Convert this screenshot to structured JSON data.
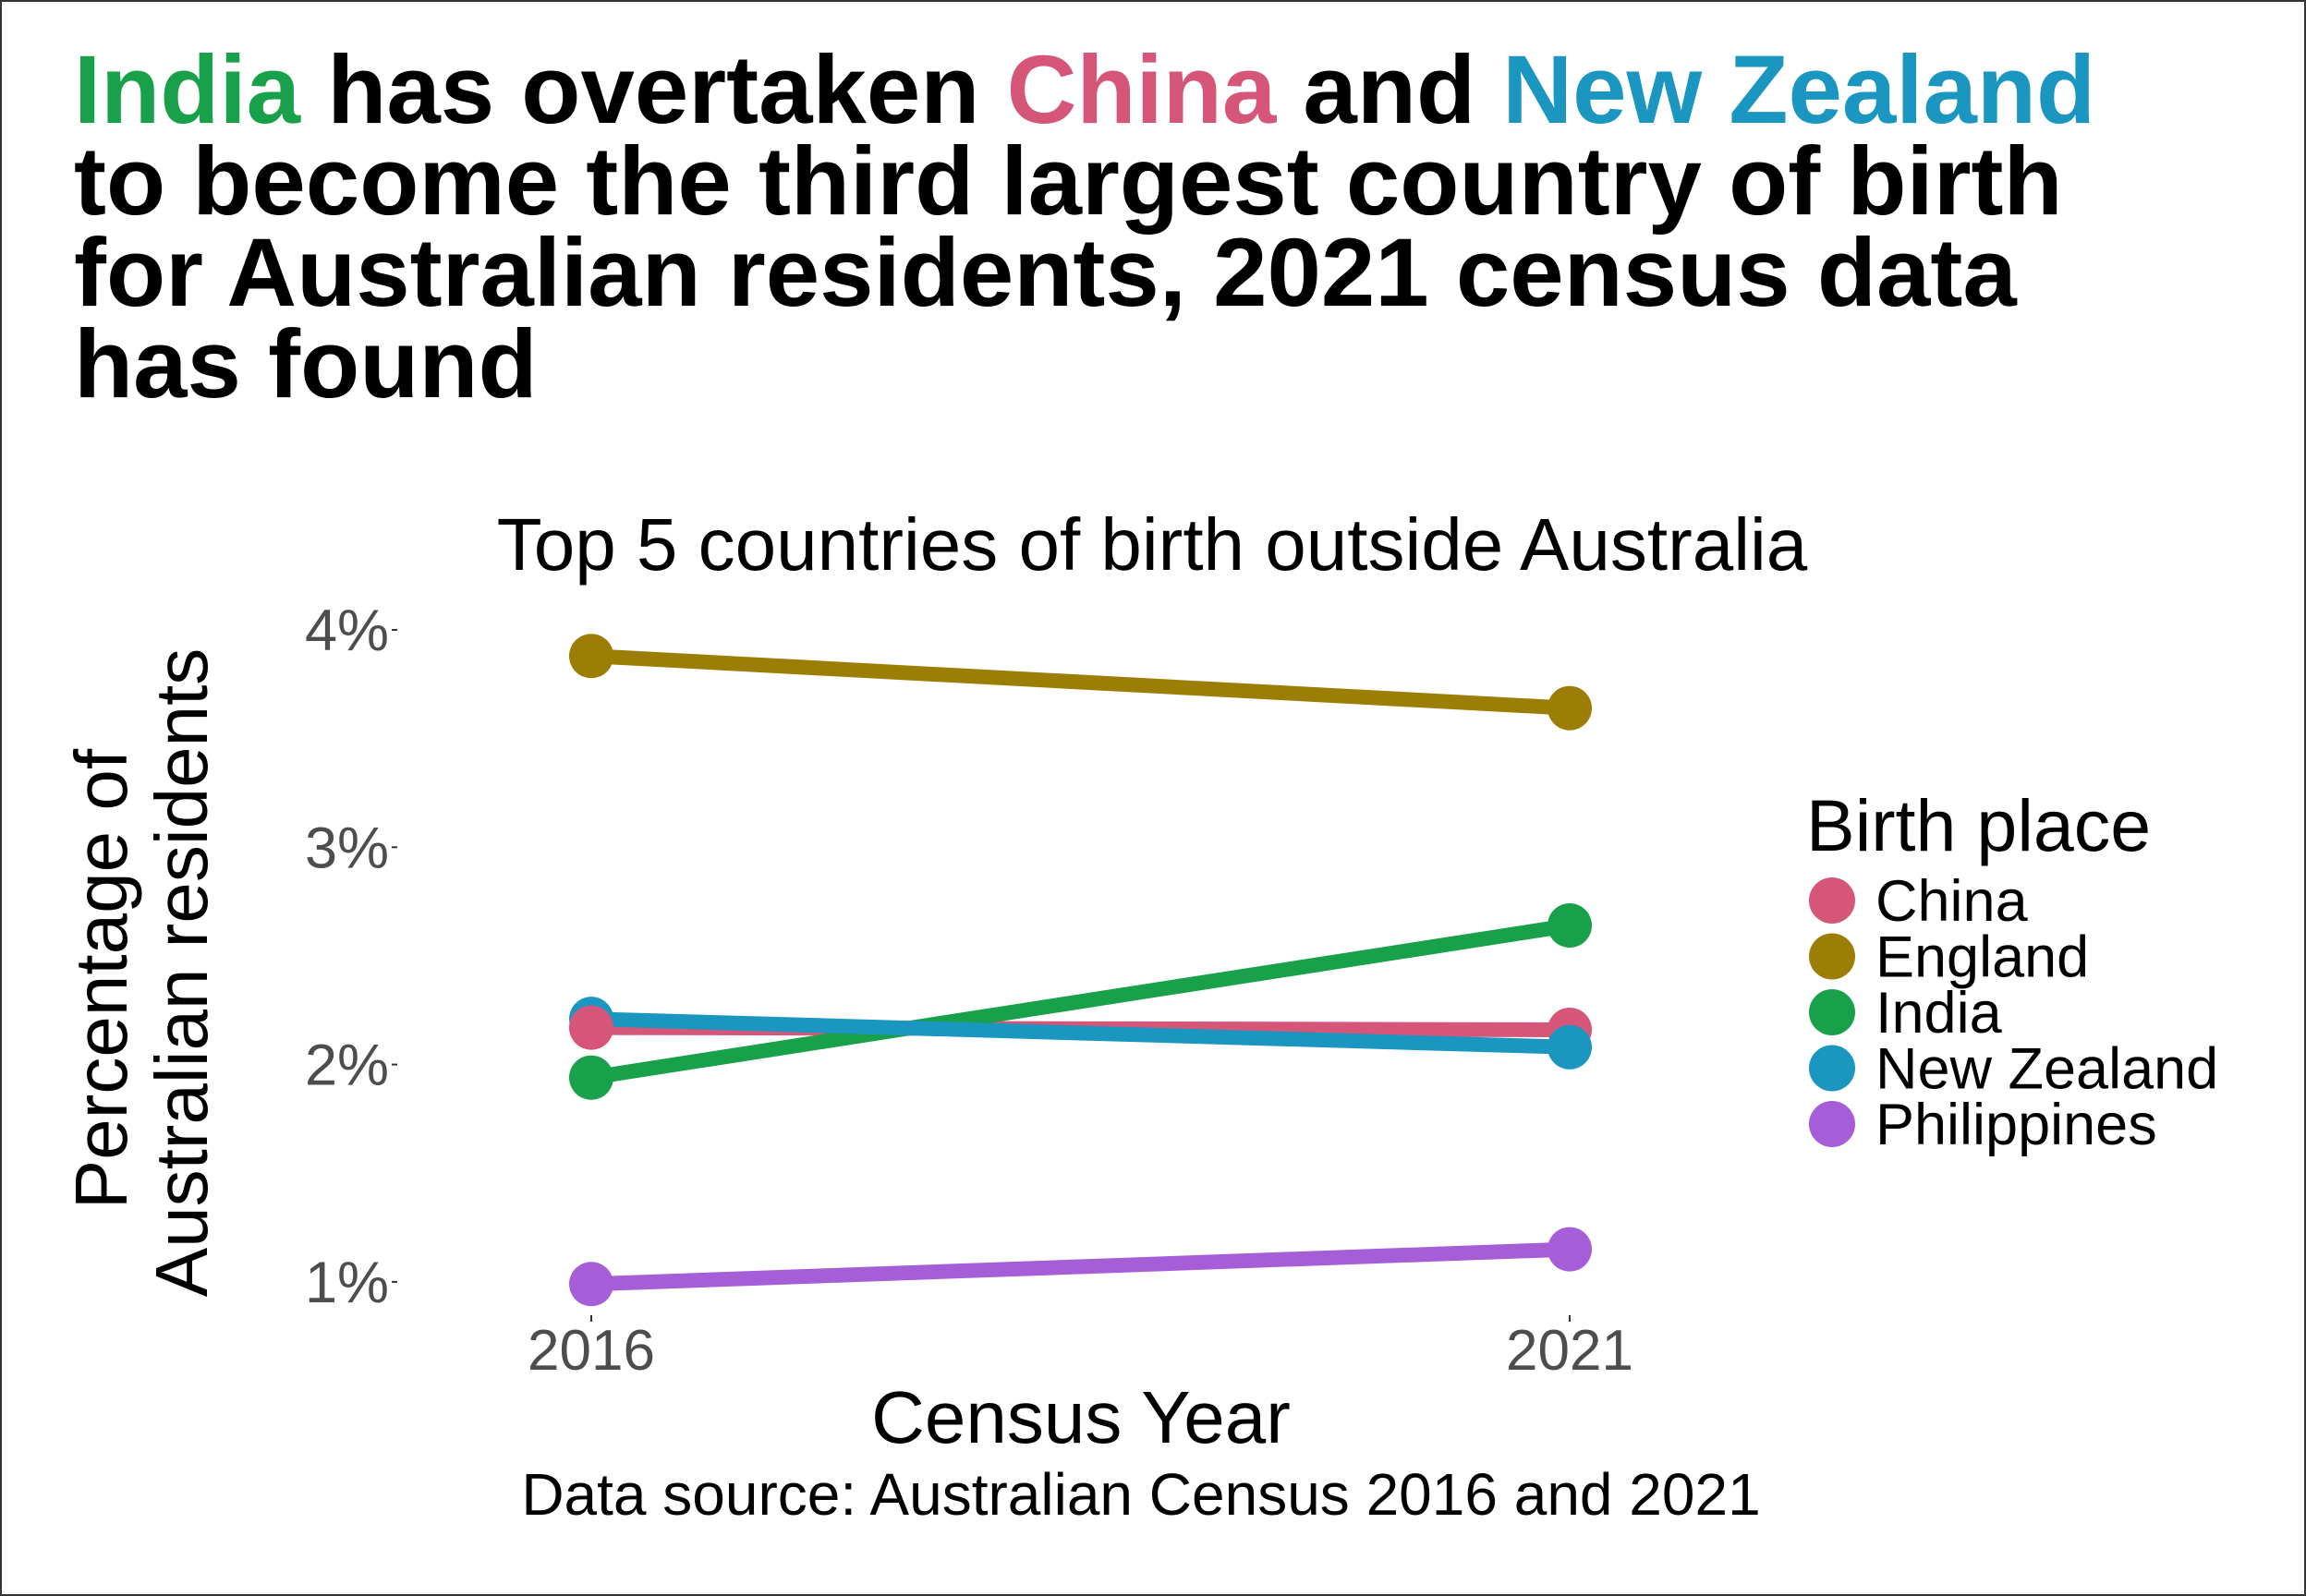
{
  "headline": {
    "parts": [
      {
        "text": "India",
        "color": "#18A04A"
      },
      {
        "text": " has overtaken ",
        "color": "#000000"
      },
      {
        "text": "China",
        "color": "#D6567A"
      },
      {
        "text": " and ",
        "color": "#000000"
      },
      {
        "text": "New Zealand",
        "color": "#1A96C0"
      }
    ],
    "line2": "to become the third largest country of birth",
    "line3": "for Australian residents, 2021 census data",
    "line4": "has found"
  },
  "chart_data": {
    "type": "line",
    "title": "Top 5 countries of birth outside Australia",
    "xlabel": "Census Year",
    "ylabel_lines": [
      "Percentage of",
      "Australian residents"
    ],
    "caption": "Data source: Australian Census 2016 and 2021",
    "x": [
      2016,
      2021
    ],
    "x_tick_labels": [
      "2016",
      "2021"
    ],
    "y_ticks": [
      1,
      2,
      3,
      4
    ],
    "y_tick_labels": [
      "1%",
      "2%",
      "3%",
      "4%"
    ],
    "ylim": [
      1,
      4
    ],
    "grid": false,
    "legend": {
      "title": "Birth place",
      "position": "right"
    },
    "series": [
      {
        "name": "China",
        "color": "#D6567A",
        "values": [
          2.17,
          2.16
        ]
      },
      {
        "name": "England",
        "color": "#9C7E06",
        "values": [
          3.88,
          3.64
        ]
      },
      {
        "name": "India",
        "color": "#18A04A",
        "values": [
          1.94,
          2.64
        ]
      },
      {
        "name": "New Zealand",
        "color": "#1A96C0",
        "values": [
          2.21,
          2.08
        ]
      },
      {
        "name": "Philippines",
        "color": "#A55ED8",
        "values": [
          0.99,
          1.15
        ]
      }
    ]
  }
}
